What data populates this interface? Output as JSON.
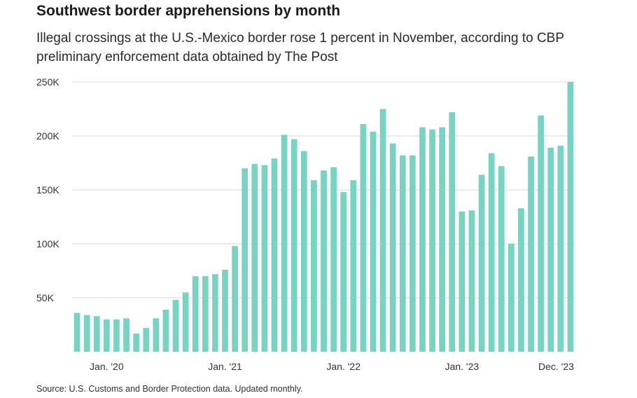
{
  "title": "Southwest border apprehensions by month",
  "subtitle": "Illegal crossings at the U.S.-Mexico border rose 1 percent in November, according to CBP preliminary enforcement data obtained by The Post",
  "source": "Source: U.S. Customs and Border Protection data. Updated monthly.",
  "colors": {
    "bar": "#79d3c2",
    "grid": "#d9d9d9"
  },
  "chart_data": {
    "type": "bar",
    "xlabel": "",
    "ylabel": "",
    "ylim": [
      0,
      250000
    ],
    "grid": true,
    "y_ticks": [
      {
        "value": 50000,
        "label": "50K"
      },
      {
        "value": 100000,
        "label": "100K"
      },
      {
        "value": 150000,
        "label": "150K"
      },
      {
        "value": 200000,
        "label": "200K"
      },
      {
        "value": 250000,
        "label": "250K"
      }
    ],
    "x_ticks": [
      {
        "category": "2020-01",
        "label": "Jan. '20"
      },
      {
        "category": "2021-01",
        "label": "Jan. '21"
      },
      {
        "category": "2022-01",
        "label": "Jan. '22"
      },
      {
        "category": "2023-01",
        "label": "Jan. '23"
      },
      {
        "category": "2023-12",
        "label": "Dec. '23"
      }
    ],
    "categories": [
      "2019-10",
      "2019-11",
      "2019-12",
      "2020-01",
      "2020-02",
      "2020-03",
      "2020-04",
      "2020-05",
      "2020-06",
      "2020-07",
      "2020-08",
      "2020-09",
      "2020-10",
      "2020-11",
      "2020-12",
      "2021-01",
      "2021-02",
      "2021-03",
      "2021-04",
      "2021-05",
      "2021-06",
      "2021-07",
      "2021-08",
      "2021-09",
      "2021-10",
      "2021-11",
      "2021-12",
      "2022-01",
      "2022-02",
      "2022-03",
      "2022-04",
      "2022-05",
      "2022-06",
      "2022-07",
      "2022-08",
      "2022-09",
      "2022-10",
      "2022-11",
      "2022-12",
      "2023-01",
      "2023-02",
      "2023-03",
      "2023-04",
      "2023-05",
      "2023-06",
      "2023-07",
      "2023-08",
      "2023-09",
      "2023-10",
      "2023-11",
      "2023-12"
    ],
    "values": [
      36000,
      34000,
      33000,
      30000,
      30000,
      31000,
      17000,
      22000,
      31000,
      39000,
      48000,
      55000,
      70000,
      70000,
      72000,
      76000,
      98000,
      170000,
      174000,
      173000,
      179000,
      201000,
      197000,
      186000,
      159000,
      168000,
      171000,
      148000,
      159000,
      211000,
      204000,
      225000,
      193000,
      182000,
      182000,
      208000,
      206000,
      208000,
      222000,
      130000,
      131000,
      164000,
      184000,
      172000,
      100000,
      133000,
      181000,
      219000,
      189000,
      191000,
      250000
    ]
  }
}
